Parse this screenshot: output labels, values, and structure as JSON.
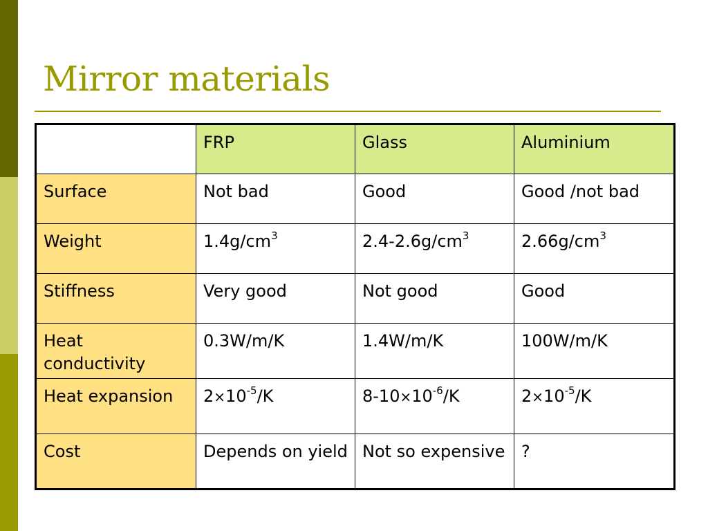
{
  "colors": {
    "sidebar_top": "#666600",
    "sidebar_middle": "#CCCC66",
    "sidebar_bottom": "#999900",
    "title": "#999900",
    "rule": "#999900",
    "header_fill": "#D6EB8C",
    "row_header_fill": "#FFE183",
    "cell_fill": "#FFFFFF"
  },
  "title": "Mirror materials",
  "table": {
    "columns": [
      "",
      "FRP",
      "Glass",
      "Aluminium"
    ],
    "rows": [
      {
        "label": "Surface",
        "frp": "Not bad",
        "glass": "Good",
        "aluminium": "Good /not bad"
      },
      {
        "label": "Weight",
        "frp": {
          "base": "1.4g/cm",
          "sup": "3"
        },
        "glass": {
          "base": "2.4-2.6g/cm",
          "sup": "3"
        },
        "aluminium": {
          "base": "2.66g/cm",
          "sup": "3"
        }
      },
      {
        "label": "Stiffness",
        "frp": "Very good",
        "glass": "Not good",
        "aluminium": "Good"
      },
      {
        "label": "Heat conductivity",
        "frp": "0.3W/m/K",
        "glass": "1.4W/m/K",
        "aluminium": "100W/m/K"
      },
      {
        "label": "Heat expansion",
        "frp": {
          "pre": "2",
          "times": "×",
          "base": "10",
          "sup": "-5",
          "post": "/K"
        },
        "glass": {
          "pre": "8-10",
          "times": "×",
          "base": "10",
          "sup": "-6",
          "post": "/K"
        },
        "aluminium": {
          "pre": "2",
          "times": "×",
          "base": "10",
          "sup": "-5",
          "post": "/K"
        }
      },
      {
        "label": "Cost",
        "frp": "Depends on yield",
        "glass": "Not so expensive",
        "aluminium": "?"
      }
    ]
  }
}
